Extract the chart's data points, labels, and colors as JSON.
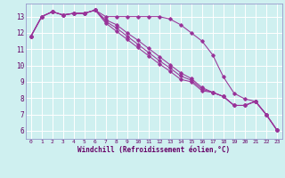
{
  "xlabel": "Windchill (Refroidissement éolien,°C)",
  "bg_color": "#cff0f0",
  "grid_color": "#ffffff",
  "line_color": "#993399",
  "spine_color": "#9999cc",
  "tick_color": "#660066",
  "xlim": [
    -0.5,
    23.5
  ],
  "ylim": [
    5.5,
    13.8
  ],
  "xticks": [
    0,
    1,
    2,
    3,
    4,
    5,
    6,
    7,
    8,
    9,
    10,
    11,
    12,
    13,
    14,
    15,
    16,
    17,
    18,
    19,
    20,
    21,
    22,
    23
  ],
  "yticks": [
    6,
    7,
    8,
    9,
    10,
    11,
    12,
    13
  ],
  "series": [
    [
      11.8,
      13.0,
      13.3,
      13.1,
      13.2,
      13.2,
      13.4,
      13.0,
      13.0,
      13.0,
      13.0,
      13.0,
      13.0,
      12.85,
      12.5,
      12.0,
      11.5,
      10.65,
      9.3,
      8.3,
      7.95,
      7.8,
      7.0,
      6.05
    ],
    [
      11.8,
      13.0,
      13.3,
      13.1,
      13.2,
      13.2,
      13.4,
      12.8,
      12.5,
      12.0,
      11.55,
      11.05,
      10.55,
      10.05,
      9.55,
      9.2,
      8.65,
      8.35,
      8.1,
      7.55,
      7.55,
      7.8,
      7.0,
      6.05
    ],
    [
      11.8,
      13.0,
      13.3,
      13.1,
      13.2,
      13.2,
      13.4,
      12.7,
      12.3,
      11.8,
      11.3,
      10.8,
      10.3,
      9.85,
      9.35,
      9.1,
      8.55,
      8.35,
      8.1,
      7.55,
      7.55,
      7.8,
      7.0,
      6.05
    ],
    [
      11.8,
      13.0,
      13.3,
      13.1,
      13.2,
      13.2,
      13.4,
      12.6,
      12.1,
      11.6,
      11.1,
      10.6,
      10.1,
      9.65,
      9.15,
      9.0,
      8.45,
      8.35,
      8.1,
      7.55,
      7.55,
      7.8,
      7.0,
      6.05
    ]
  ]
}
